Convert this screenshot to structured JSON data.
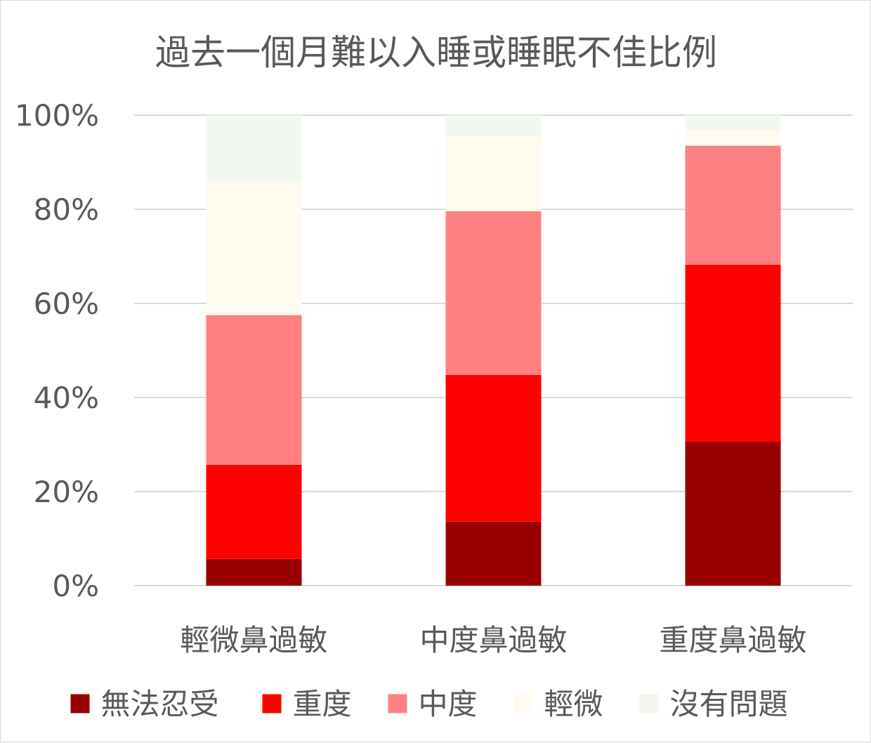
{
  "chart_data": {
    "type": "bar",
    "stacked": true,
    "title": "過去一個月難以入睡或睡眠不佳比例",
    "categories": [
      "輕微鼻過敏",
      "中度鼻過敏",
      "重度鼻過敏"
    ],
    "ylim": [
      0,
      100
    ],
    "yticks": [
      "0%",
      "20%",
      "40%",
      "60%",
      "80%",
      "100%"
    ],
    "grid": true,
    "legend_position": "bottom",
    "series": [
      {
        "name": "無法忍受",
        "color": "#990000",
        "values": [
          5.7,
          13.6,
          30.6
        ]
      },
      {
        "name": "重度",
        "color": "#ff0000",
        "values": [
          20.0,
          31.2,
          37.6
        ]
      },
      {
        "name": "中度",
        "color": "#ff8080",
        "values": [
          31.8,
          34.8,
          25.3
        ]
      },
      {
        "name": "輕微",
        "color": "#fffbee",
        "values": [
          28.5,
          15.8,
          3.3
        ]
      },
      {
        "name": "沒有問題",
        "color": "#f2f7f0",
        "values": [
          14.0,
          4.6,
          3.2
        ]
      }
    ]
  }
}
